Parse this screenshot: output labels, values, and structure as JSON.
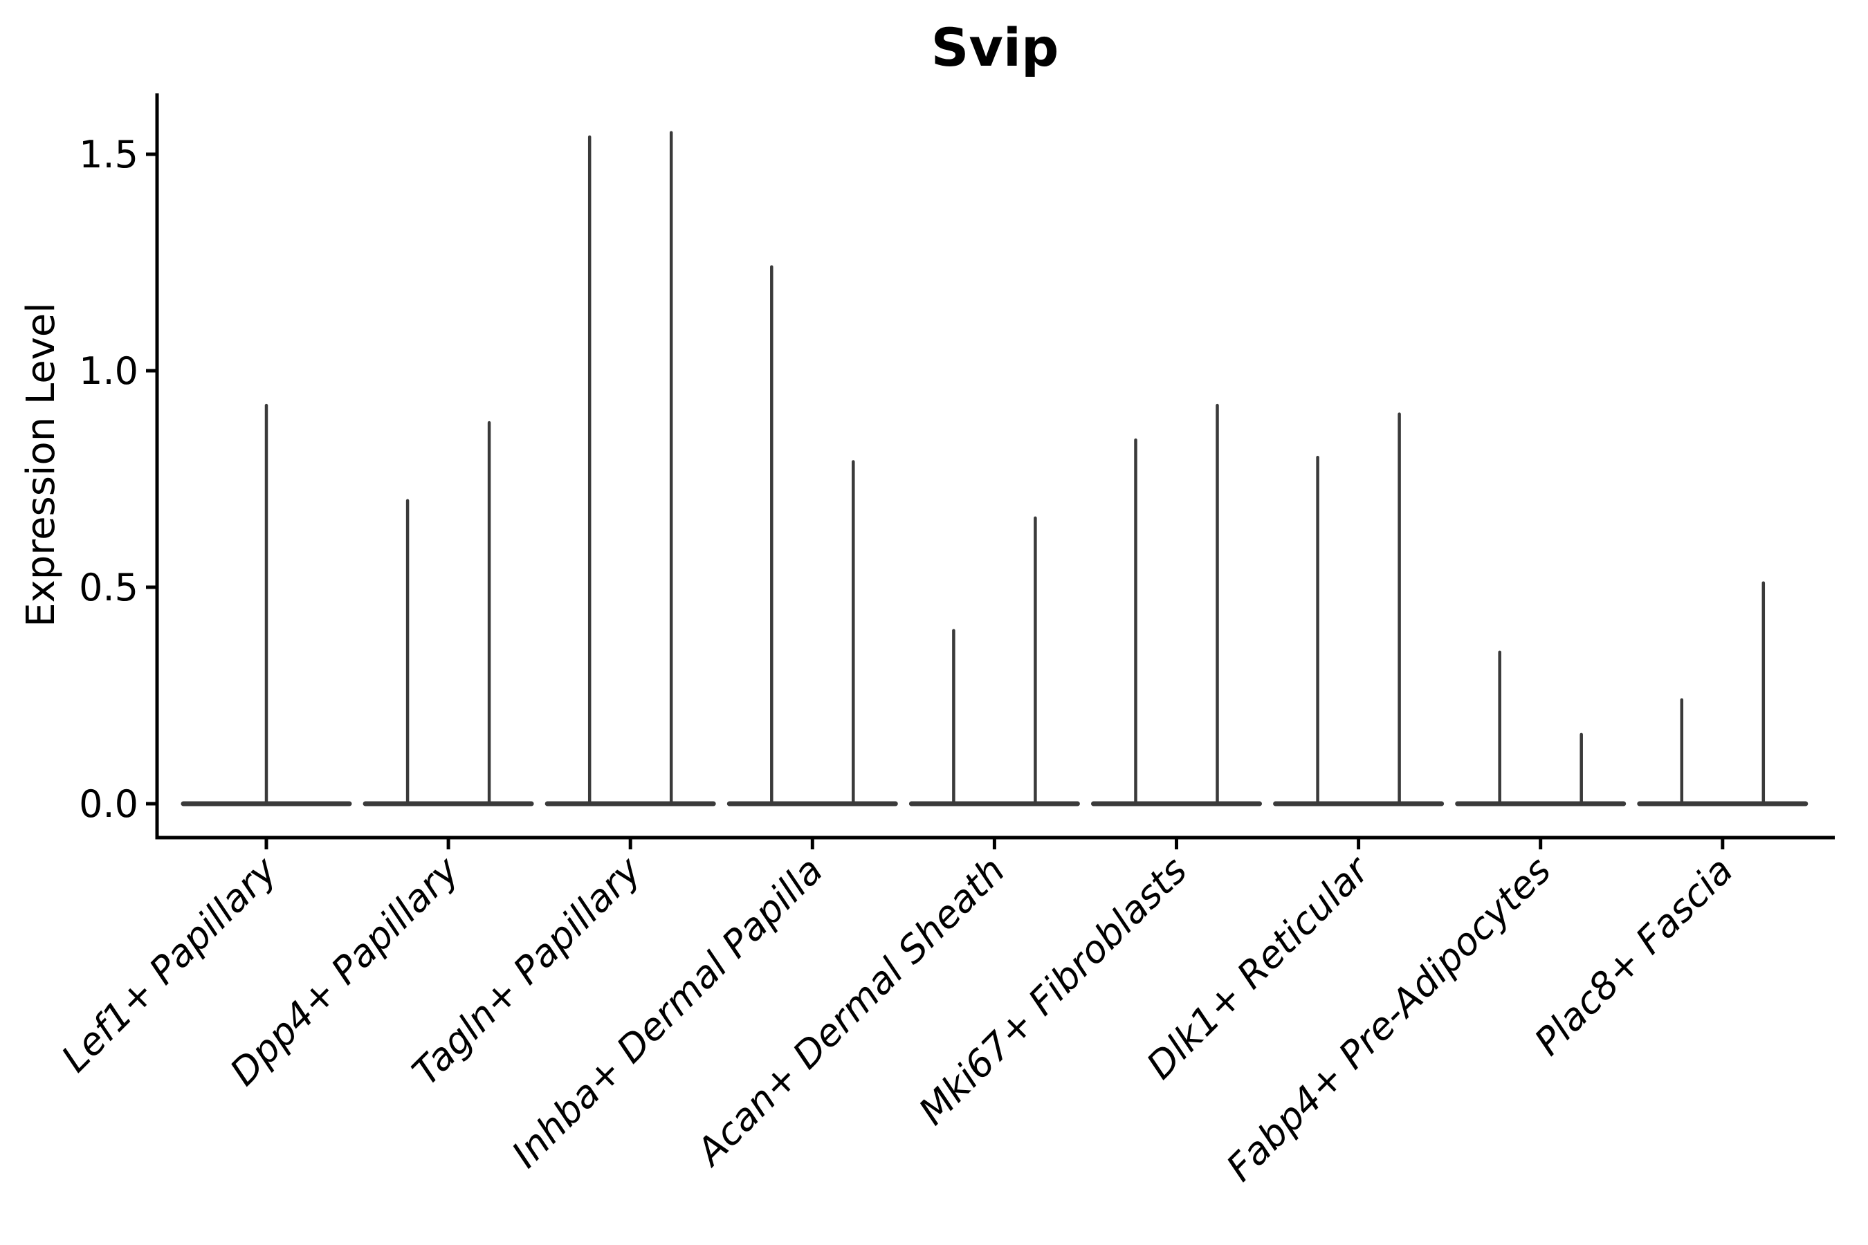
{
  "chart_data": {
    "type": "violin",
    "title": "Svip",
    "ylabel": "Expression Level",
    "xlabel": "",
    "ylim": [
      -0.07,
      1.62
    ],
    "yticks": [
      0.0,
      0.5,
      1.0,
      1.5
    ],
    "ytick_labels": [
      "0.0",
      "0.5",
      "1.0",
      "1.5"
    ],
    "grid": false,
    "legend": "none",
    "categories": [
      "Lef1+ Papillary",
      "Dpp4+ Papillary",
      "Tagln+ Papillary",
      "Inhba+ Dermal Papilla",
      "Acan+ Dermal Sheath",
      "Mki67+ Fibroblasts",
      "Dlk1+ Reticular",
      "Fabp4+ Pre-Adipocytes",
      "Plac8+ Fascia"
    ],
    "description": "Thin violin plots of Svip expression per fibroblast cluster; each violin collapses to a flat base at 0 with one or two narrow spikes reaching the listed maximum expression value.",
    "baseline_value": 0.0,
    "violins": [
      {
        "category": "Lef1+ Papillary",
        "spikes": [
          {
            "pos": "center",
            "max": 0.92
          }
        ]
      },
      {
        "category": "Dpp4+ Papillary",
        "spikes": [
          {
            "pos": "left",
            "max": 0.7
          },
          {
            "pos": "right",
            "max": 0.88
          }
        ]
      },
      {
        "category": "Tagln+ Papillary",
        "spikes": [
          {
            "pos": "left",
            "max": 1.54
          },
          {
            "pos": "right",
            "max": 1.55
          }
        ]
      },
      {
        "category": "Inhba+ Dermal Papilla",
        "spikes": [
          {
            "pos": "left",
            "max": 1.24
          },
          {
            "pos": "right",
            "max": 0.79
          }
        ]
      },
      {
        "category": "Acan+ Dermal Sheath",
        "spikes": [
          {
            "pos": "left",
            "max": 0.4
          },
          {
            "pos": "right",
            "max": 0.66
          }
        ]
      },
      {
        "category": "Mki67+ Fibroblasts",
        "spikes": [
          {
            "pos": "left",
            "max": 0.84
          },
          {
            "pos": "right",
            "max": 0.92
          }
        ]
      },
      {
        "category": "Dlk1+ Reticular",
        "spikes": [
          {
            "pos": "left",
            "max": 0.8
          },
          {
            "pos": "right",
            "max": 0.9
          }
        ]
      },
      {
        "category": "Fabp4+ Pre-Adipocytes",
        "spikes": [
          {
            "pos": "left",
            "max": 0.35
          },
          {
            "pos": "right",
            "max": 0.16
          }
        ]
      },
      {
        "category": "Plac8+ Fascia",
        "spikes": [
          {
            "pos": "left",
            "max": 0.24
          },
          {
            "pos": "right",
            "max": 0.51
          }
        ]
      }
    ],
    "colors": {
      "violin": "#3a3a3a",
      "axis": "#000000",
      "text": "#000000",
      "background": "#ffffff"
    }
  }
}
